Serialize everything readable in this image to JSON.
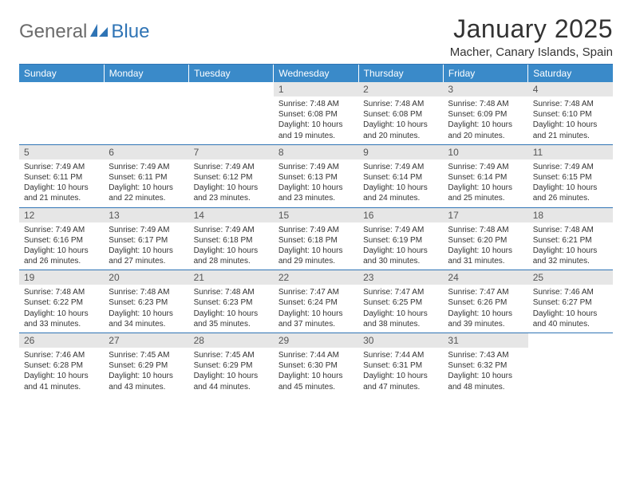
{
  "logo": {
    "word1": "General",
    "word2": "Blue",
    "mark_color": "#2f74b5"
  },
  "title": "January 2025",
  "subtitle": "Macher, Canary Islands, Spain",
  "colors": {
    "header_bg": "#3a8ac9",
    "header_text": "#ffffff",
    "rule": "#2f74b5",
    "daynum_bg": "#e6e6e6",
    "text": "#333333",
    "logo_gray": "#6b6b6b"
  },
  "day_headers": [
    "Sunday",
    "Monday",
    "Tuesday",
    "Wednesday",
    "Thursday",
    "Friday",
    "Saturday"
  ],
  "weeks": [
    [
      {
        "blank": true
      },
      {
        "blank": true
      },
      {
        "blank": true
      },
      {
        "n": "1",
        "sunrise": "7:48 AM",
        "sunset": "6:08 PM",
        "dl1": "Daylight: 10 hours",
        "dl2": "and 19 minutes."
      },
      {
        "n": "2",
        "sunrise": "7:48 AM",
        "sunset": "6:08 PM",
        "dl1": "Daylight: 10 hours",
        "dl2": "and 20 minutes."
      },
      {
        "n": "3",
        "sunrise": "7:48 AM",
        "sunset": "6:09 PM",
        "dl1": "Daylight: 10 hours",
        "dl2": "and 20 minutes."
      },
      {
        "n": "4",
        "sunrise": "7:48 AM",
        "sunset": "6:10 PM",
        "dl1": "Daylight: 10 hours",
        "dl2": "and 21 minutes."
      }
    ],
    [
      {
        "n": "5",
        "sunrise": "7:49 AM",
        "sunset": "6:11 PM",
        "dl1": "Daylight: 10 hours",
        "dl2": "and 21 minutes."
      },
      {
        "n": "6",
        "sunrise": "7:49 AM",
        "sunset": "6:11 PM",
        "dl1": "Daylight: 10 hours",
        "dl2": "and 22 minutes."
      },
      {
        "n": "7",
        "sunrise": "7:49 AM",
        "sunset": "6:12 PM",
        "dl1": "Daylight: 10 hours",
        "dl2": "and 23 minutes."
      },
      {
        "n": "8",
        "sunrise": "7:49 AM",
        "sunset": "6:13 PM",
        "dl1": "Daylight: 10 hours",
        "dl2": "and 23 minutes."
      },
      {
        "n": "9",
        "sunrise": "7:49 AM",
        "sunset": "6:14 PM",
        "dl1": "Daylight: 10 hours",
        "dl2": "and 24 minutes."
      },
      {
        "n": "10",
        "sunrise": "7:49 AM",
        "sunset": "6:14 PM",
        "dl1": "Daylight: 10 hours",
        "dl2": "and 25 minutes."
      },
      {
        "n": "11",
        "sunrise": "7:49 AM",
        "sunset": "6:15 PM",
        "dl1": "Daylight: 10 hours",
        "dl2": "and 26 minutes."
      }
    ],
    [
      {
        "n": "12",
        "sunrise": "7:49 AM",
        "sunset": "6:16 PM",
        "dl1": "Daylight: 10 hours",
        "dl2": "and 26 minutes."
      },
      {
        "n": "13",
        "sunrise": "7:49 AM",
        "sunset": "6:17 PM",
        "dl1": "Daylight: 10 hours",
        "dl2": "and 27 minutes."
      },
      {
        "n": "14",
        "sunrise": "7:49 AM",
        "sunset": "6:18 PM",
        "dl1": "Daylight: 10 hours",
        "dl2": "and 28 minutes."
      },
      {
        "n": "15",
        "sunrise": "7:49 AM",
        "sunset": "6:18 PM",
        "dl1": "Daylight: 10 hours",
        "dl2": "and 29 minutes."
      },
      {
        "n": "16",
        "sunrise": "7:49 AM",
        "sunset": "6:19 PM",
        "dl1": "Daylight: 10 hours",
        "dl2": "and 30 minutes."
      },
      {
        "n": "17",
        "sunrise": "7:48 AM",
        "sunset": "6:20 PM",
        "dl1": "Daylight: 10 hours",
        "dl2": "and 31 minutes."
      },
      {
        "n": "18",
        "sunrise": "7:48 AM",
        "sunset": "6:21 PM",
        "dl1": "Daylight: 10 hours",
        "dl2": "and 32 minutes."
      }
    ],
    [
      {
        "n": "19",
        "sunrise": "7:48 AM",
        "sunset": "6:22 PM",
        "dl1": "Daylight: 10 hours",
        "dl2": "and 33 minutes."
      },
      {
        "n": "20",
        "sunrise": "7:48 AM",
        "sunset": "6:23 PM",
        "dl1": "Daylight: 10 hours",
        "dl2": "and 34 minutes."
      },
      {
        "n": "21",
        "sunrise": "7:48 AM",
        "sunset": "6:23 PM",
        "dl1": "Daylight: 10 hours",
        "dl2": "and 35 minutes."
      },
      {
        "n": "22",
        "sunrise": "7:47 AM",
        "sunset": "6:24 PM",
        "dl1": "Daylight: 10 hours",
        "dl2": "and 37 minutes."
      },
      {
        "n": "23",
        "sunrise": "7:47 AM",
        "sunset": "6:25 PM",
        "dl1": "Daylight: 10 hours",
        "dl2": "and 38 minutes."
      },
      {
        "n": "24",
        "sunrise": "7:47 AM",
        "sunset": "6:26 PM",
        "dl1": "Daylight: 10 hours",
        "dl2": "and 39 minutes."
      },
      {
        "n": "25",
        "sunrise": "7:46 AM",
        "sunset": "6:27 PM",
        "dl1": "Daylight: 10 hours",
        "dl2": "and 40 minutes."
      }
    ],
    [
      {
        "n": "26",
        "sunrise": "7:46 AM",
        "sunset": "6:28 PM",
        "dl1": "Daylight: 10 hours",
        "dl2": "and 41 minutes."
      },
      {
        "n": "27",
        "sunrise": "7:45 AM",
        "sunset": "6:29 PM",
        "dl1": "Daylight: 10 hours",
        "dl2": "and 43 minutes."
      },
      {
        "n": "28",
        "sunrise": "7:45 AM",
        "sunset": "6:29 PM",
        "dl1": "Daylight: 10 hours",
        "dl2": "and 44 minutes."
      },
      {
        "n": "29",
        "sunrise": "7:44 AM",
        "sunset": "6:30 PM",
        "dl1": "Daylight: 10 hours",
        "dl2": "and 45 minutes."
      },
      {
        "n": "30",
        "sunrise": "7:44 AM",
        "sunset": "6:31 PM",
        "dl1": "Daylight: 10 hours",
        "dl2": "and 47 minutes."
      },
      {
        "n": "31",
        "sunrise": "7:43 AM",
        "sunset": "6:32 PM",
        "dl1": "Daylight: 10 hours",
        "dl2": "and 48 minutes."
      },
      {
        "blank": true
      }
    ]
  ],
  "sunrise_label": "Sunrise: ",
  "sunset_label": "Sunset: "
}
